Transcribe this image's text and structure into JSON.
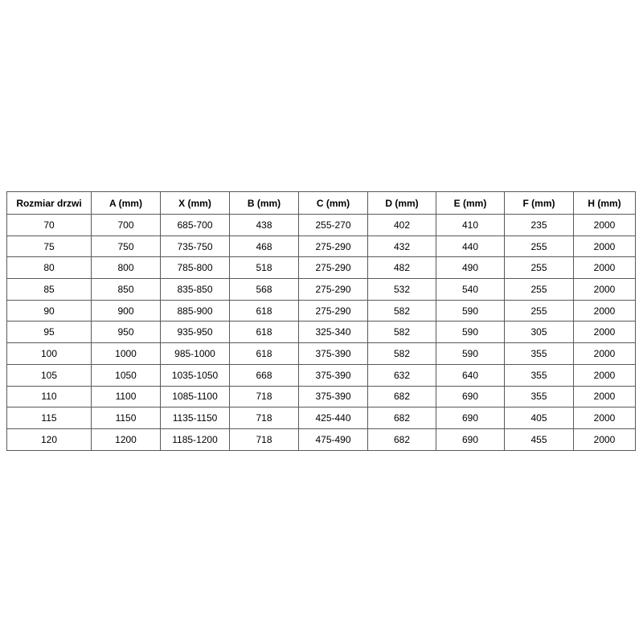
{
  "colors": {
    "background": "#ffffff",
    "table_border": "#595959",
    "text": "#000000"
  },
  "table": {
    "name": "door-size-dimensions",
    "headers": [
      "Rozmiar drzwi",
      "A (mm)",
      "X (mm)",
      "B (mm)",
      "C (mm)",
      "D (mm)",
      "E (mm)",
      "F (mm)",
      "H (mm)"
    ],
    "rows": [
      [
        "70",
        "700",
        "685-700",
        "438",
        "255-270",
        "402",
        "410",
        "235",
        "2000"
      ],
      [
        "75",
        "750",
        "735-750",
        "468",
        "275-290",
        "432",
        "440",
        "255",
        "2000"
      ],
      [
        "80",
        "800",
        "785-800",
        "518",
        "275-290",
        "482",
        "490",
        "255",
        "2000"
      ],
      [
        "85",
        "850",
        "835-850",
        "568",
        "275-290",
        "532",
        "540",
        "255",
        "2000"
      ],
      [
        "90",
        "900",
        "885-900",
        "618",
        "275-290",
        "582",
        "590",
        "255",
        "2000"
      ],
      [
        "95",
        "950",
        "935-950",
        "618",
        "325-340",
        "582",
        "590",
        "305",
        "2000"
      ],
      [
        "100",
        "1000",
        "985-1000",
        "618",
        "375-390",
        "582",
        "590",
        "355",
        "2000"
      ],
      [
        "105",
        "1050",
        "1035-1050",
        "668",
        "375-390",
        "632",
        "640",
        "355",
        "2000"
      ],
      [
        "110",
        "1100",
        "1085-1100",
        "718",
        "375-390",
        "682",
        "690",
        "355",
        "2000"
      ],
      [
        "115",
        "1150",
        "1135-1150",
        "718",
        "425-440",
        "682",
        "690",
        "405",
        "2000"
      ],
      [
        "120",
        "1200",
        "1185-1200",
        "718",
        "475-490",
        "682",
        "690",
        "455",
        "2000"
      ]
    ]
  }
}
